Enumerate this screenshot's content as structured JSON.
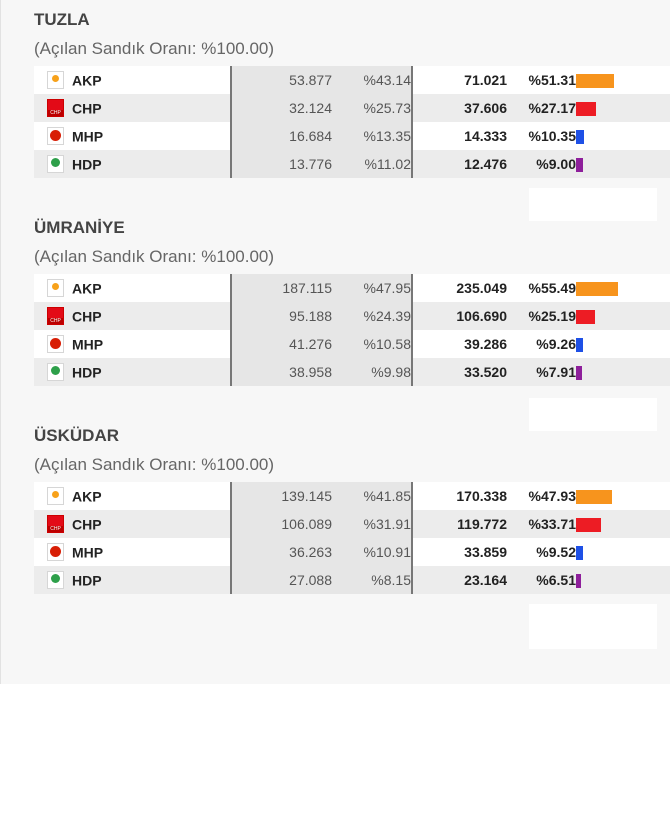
{
  "districts": [
    {
      "name": "TUZLA",
      "subtitle": "(Açılan Sandık Oranı: %100.00)",
      "rows": [
        {
          "party": "AKP",
          "logo_icon": "akp-logo-icon",
          "votes1": "53.877",
          "pct1": "%43.14",
          "votes2": "71.021",
          "pct2": "%51.31",
          "share": 51.31,
          "color": "#f7941d"
        },
        {
          "party": "CHP",
          "logo_icon": "chp-logo-icon",
          "votes1": "32.124",
          "pct1": "%25.73",
          "votes2": "37.606",
          "pct2": "%27.17",
          "share": 27.17,
          "color": "#ed1c24"
        },
        {
          "party": "MHP",
          "logo_icon": "mhp-logo-icon",
          "votes1": "16.684",
          "pct1": "%13.35",
          "votes2": "14.333",
          "pct2": "%10.35",
          "share": 10.35,
          "color": "#1e50e6"
        },
        {
          "party": "HDP",
          "logo_icon": "hdp-logo-icon",
          "votes1": "13.776",
          "pct1": "%11.02",
          "votes2": "12.476",
          "pct2": "%9.00",
          "share": 9.0,
          "color": "#8e1f9b"
        }
      ]
    },
    {
      "name": "ÜMRANİYE",
      "subtitle": "(Açılan Sandık Oranı: %100.00)",
      "rows": [
        {
          "party": "AKP",
          "logo_icon": "akp-logo-icon",
          "votes1": "187.115",
          "pct1": "%47.95",
          "votes2": "235.049",
          "pct2": "%55.49",
          "share": 55.49,
          "color": "#f7941d"
        },
        {
          "party": "CHP",
          "logo_icon": "chp-logo-icon",
          "votes1": "95.188",
          "pct1": "%24.39",
          "votes2": "106.690",
          "pct2": "%25.19",
          "share": 25.19,
          "color": "#ed1c24"
        },
        {
          "party": "MHP",
          "logo_icon": "mhp-logo-icon",
          "votes1": "41.276",
          "pct1": "%10.58",
          "votes2": "39.286",
          "pct2": "%9.26",
          "share": 9.26,
          "color": "#1e50e6"
        },
        {
          "party": "HDP",
          "logo_icon": "hdp-logo-icon",
          "votes1": "38.958",
          "pct1": "%9.98",
          "votes2": "33.520",
          "pct2": "%7.91",
          "share": 7.91,
          "color": "#8e1f9b"
        }
      ]
    },
    {
      "name": "ÜSKÜDAR",
      "subtitle": "(Açılan Sandık Oranı: %100.00)",
      "rows": [
        {
          "party": "AKP",
          "logo_icon": "akp-logo-icon",
          "votes1": "139.145",
          "pct1": "%41.85",
          "votes2": "170.338",
          "pct2": "%47.93",
          "share": 47.93,
          "color": "#f7941d"
        },
        {
          "party": "CHP",
          "logo_icon": "chp-logo-icon",
          "votes1": "106.089",
          "pct1": "%31.91",
          "votes2": "119.772",
          "pct2": "%33.71",
          "share": 33.71,
          "color": "#ed1c24"
        },
        {
          "party": "MHP",
          "logo_icon": "mhp-logo-icon",
          "votes1": "36.263",
          "pct1": "%10.91",
          "votes2": "33.859",
          "pct2": "%9.52",
          "share": 9.52,
          "color": "#1e50e6"
        },
        {
          "party": "HDP",
          "logo_icon": "hdp-logo-icon",
          "votes1": "27.088",
          "pct1": "%8.15",
          "votes2": "23.164",
          "pct2": "%6.51",
          "share": 6.51,
          "color": "#8e1f9b"
        }
      ]
    }
  ]
}
